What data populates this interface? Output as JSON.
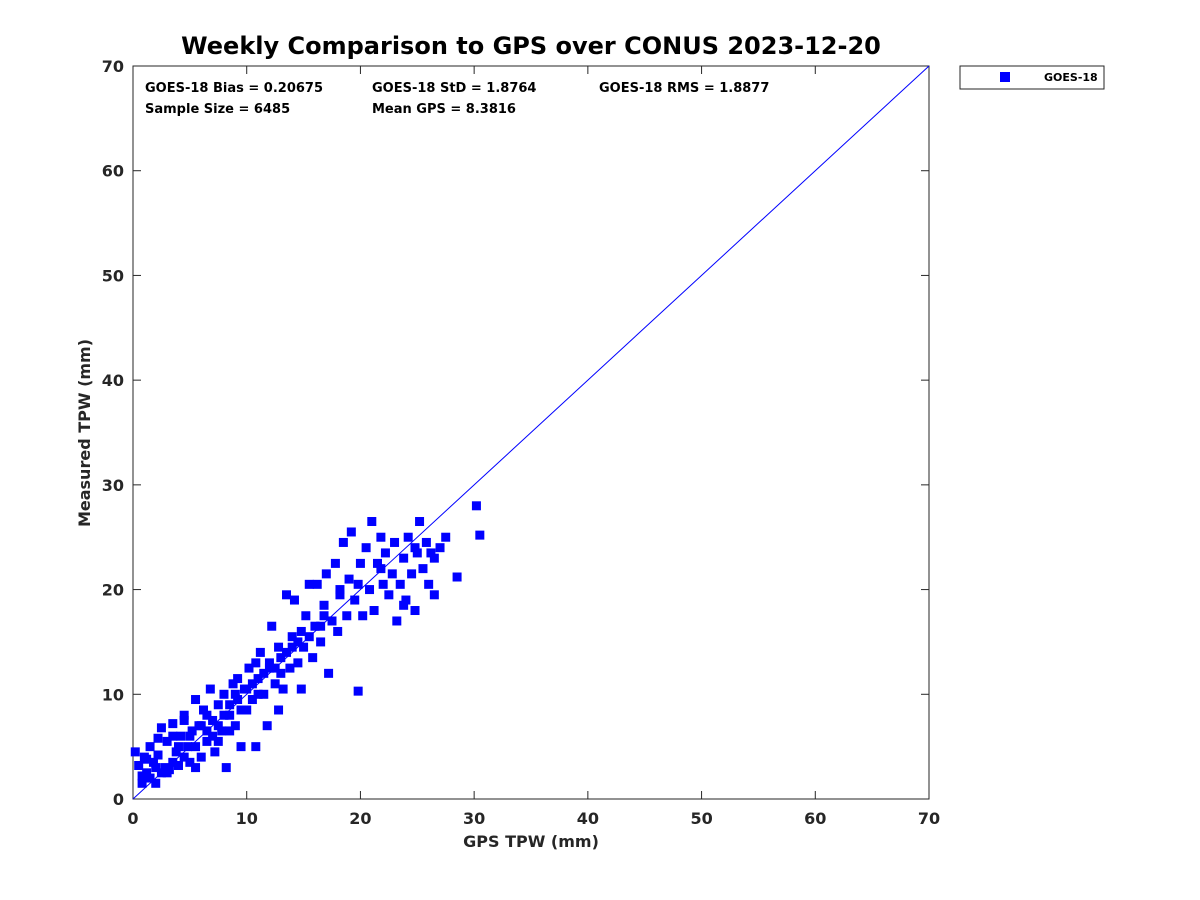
{
  "chart_data": {
    "type": "scatter",
    "title": "Weekly Comparison to GPS over CONUS 2023-12-20",
    "xlabel": "GPS TPW (mm)",
    "ylabel": "Measured TPW (mm)",
    "xlim": [
      0,
      70
    ],
    "ylim": [
      0,
      70
    ],
    "xticks": [
      "0",
      "10",
      "20",
      "30",
      "40",
      "50",
      "60",
      "70"
    ],
    "yticks": [
      "0",
      "10",
      "20",
      "30",
      "40",
      "50",
      "60",
      "70"
    ],
    "legend": {
      "position": "outside-top-right",
      "entries": [
        "GOES-18"
      ]
    },
    "stats": {
      "bias": "GOES-18 Bias = 0.20675",
      "std": "GOES-18 StD = 1.8764",
      "rms": "GOES-18 RMS = 1.8877",
      "sample": "Sample Size = 6485",
      "mean": "Mean GPS = 8.3816"
    },
    "reference_line": {
      "name": "one-to-one",
      "from": [
        0,
        0
      ],
      "to": [
        70,
        70
      ]
    },
    "series": [
      {
        "name": "GOES-18",
        "color": "#0000ff",
        "marker": "square",
        "points": [
          [
            0.2,
            4.5
          ],
          [
            0.5,
            3.2
          ],
          [
            0.8,
            1.5
          ],
          [
            1.0,
            4.0
          ],
          [
            1.2,
            2.5
          ],
          [
            1.5,
            5.0
          ],
          [
            1.8,
            3.5
          ],
          [
            2.0,
            1.5
          ],
          [
            2.2,
            4.2
          ],
          [
            2.5,
            6.8
          ],
          [
            2.8,
            3.0
          ],
          [
            3.0,
            5.5
          ],
          [
            3.2,
            2.8
          ],
          [
            3.5,
            7.2
          ],
          [
            3.8,
            4.5
          ],
          [
            4.0,
            3.2
          ],
          [
            4.2,
            6.0
          ],
          [
            4.5,
            8.0
          ],
          [
            4.8,
            5.0
          ],
          [
            5.0,
            3.5
          ],
          [
            5.2,
            6.5
          ],
          [
            5.5,
            9.5
          ],
          [
            5.8,
            7.0
          ],
          [
            6.0,
            4.0
          ],
          [
            6.2,
            8.5
          ],
          [
            6.5,
            5.5
          ],
          [
            6.8,
            10.5
          ],
          [
            7.0,
            7.5
          ],
          [
            7.2,
            4.5
          ],
          [
            7.5,
            9.0
          ],
          [
            7.8,
            6.5
          ],
          [
            8.0,
            10.0
          ],
          [
            8.2,
            3.0
          ],
          [
            8.5,
            8.0
          ],
          [
            8.8,
            11.0
          ],
          [
            9.0,
            7.0
          ],
          [
            9.2,
            9.5
          ],
          [
            9.5,
            5.0
          ],
          [
            9.8,
            10.5
          ],
          [
            10.0,
            8.5
          ],
          [
            10.2,
            12.5
          ],
          [
            10.5,
            9.5
          ],
          [
            10.8,
            5.0
          ],
          [
            11.0,
            11.5
          ],
          [
            11.2,
            14.0
          ],
          [
            11.5,
            10.0
          ],
          [
            11.8,
            7.0
          ],
          [
            12.0,
            12.5
          ],
          [
            12.2,
            16.5
          ],
          [
            12.5,
            11.0
          ],
          [
            12.8,
            8.5
          ],
          [
            13.0,
            13.5
          ],
          [
            13.2,
            10.5
          ],
          [
            13.5,
            19.5
          ],
          [
            13.8,
            12.5
          ],
          [
            14.0,
            15.5
          ],
          [
            14.2,
            19.0
          ],
          [
            14.5,
            13.0
          ],
          [
            14.8,
            10.5
          ],
          [
            15.0,
            14.5
          ],
          [
            15.2,
            17.5
          ],
          [
            15.5,
            20.5
          ],
          [
            15.8,
            13.5
          ],
          [
            16.0,
            16.5
          ],
          [
            16.2,
            20.5
          ],
          [
            16.5,
            15.0
          ],
          [
            16.8,
            18.5
          ],
          [
            17.0,
            21.5
          ],
          [
            17.2,
            12.0
          ],
          [
            17.5,
            17.0
          ],
          [
            17.8,
            22.5
          ],
          [
            18.0,
            16.0
          ],
          [
            18.2,
            19.5
          ],
          [
            18.5,
            24.5
          ],
          [
            18.8,
            17.5
          ],
          [
            19.0,
            21.0
          ],
          [
            19.2,
            25.5
          ],
          [
            19.5,
            19.0
          ],
          [
            19.8,
            10.3
          ],
          [
            20.0,
            22.5
          ],
          [
            20.2,
            17.5
          ],
          [
            20.5,
            24.0
          ],
          [
            20.8,
            20.0
          ],
          [
            21.0,
            26.5
          ],
          [
            21.2,
            18.0
          ],
          [
            21.5,
            22.5
          ],
          [
            21.8,
            25.0
          ],
          [
            22.0,
            20.5
          ],
          [
            22.2,
            23.5
          ],
          [
            22.5,
            19.5
          ],
          [
            22.8,
            21.5
          ],
          [
            23.0,
            24.5
          ],
          [
            23.2,
            17.0
          ],
          [
            23.5,
            20.5
          ],
          [
            23.8,
            23.0
          ],
          [
            24.0,
            19.0
          ],
          [
            24.2,
            25.0
          ],
          [
            24.5,
            21.5
          ],
          [
            24.8,
            18.0
          ],
          [
            25.0,
            23.5
          ],
          [
            25.2,
            26.5
          ],
          [
            25.5,
            22.0
          ],
          [
            25.8,
            24.5
          ],
          [
            26.0,
            20.5
          ],
          [
            26.2,
            23.5
          ],
          [
            26.5,
            19.5
          ],
          [
            27.0,
            24.0
          ],
          [
            27.5,
            25.0
          ],
          [
            28.5,
            21.2
          ],
          [
            30.2,
            28.0
          ],
          [
            30.5,
            25.2
          ],
          [
            2.5,
            2.5
          ],
          [
            3.5,
            3.5
          ],
          [
            4.5,
            4.0
          ],
          [
            5.5,
            5.0
          ],
          [
            6.5,
            6.5
          ],
          [
            7.5,
            7.0
          ],
          [
            8.5,
            9.0
          ],
          [
            9.5,
            8.5
          ],
          [
            10.5,
            11.0
          ],
          [
            11.5,
            12.0
          ],
          [
            12.5,
            12.5
          ],
          [
            13.5,
            14.0
          ],
          [
            14.5,
            15.0
          ],
          [
            15.5,
            15.5
          ],
          [
            16.5,
            16.5
          ],
          [
            1.5,
            2.0
          ],
          [
            2.0,
            3.0
          ],
          [
            3.0,
            2.5
          ],
          [
            4.0,
            5.0
          ],
          [
            5.0,
            6.0
          ],
          [
            6.0,
            7.0
          ],
          [
            7.0,
            6.0
          ],
          [
            8.0,
            8.0
          ],
          [
            9.0,
            10.0
          ],
          [
            10.0,
            10.5
          ],
          [
            11.0,
            10.0
          ],
          [
            12.0,
            13.0
          ],
          [
            13.0,
            12.0
          ],
          [
            14.0,
            14.5
          ],
          [
            3.5,
            6.0
          ],
          [
            4.5,
            7.5
          ],
          [
            5.5,
            3.0
          ],
          [
            6.5,
            8.0
          ],
          [
            7.5,
            5.5
          ],
          [
            8.5,
            6.5
          ],
          [
            2.2,
            5.8
          ],
          [
            1.2,
            3.8
          ],
          [
            0.8,
            2.2
          ],
          [
            9.2,
            11.5
          ],
          [
            10.8,
            13.0
          ],
          [
            12.8,
            14.5
          ],
          [
            14.8,
            16.0
          ],
          [
            16.8,
            17.5
          ],
          [
            18.2,
            20.0
          ],
          [
            19.8,
            20.5
          ],
          [
            21.8,
            22.0
          ],
          [
            24.8,
            24.0
          ],
          [
            26.5,
            23.0
          ],
          [
            23.8,
            18.5
          ]
        ]
      }
    ]
  }
}
